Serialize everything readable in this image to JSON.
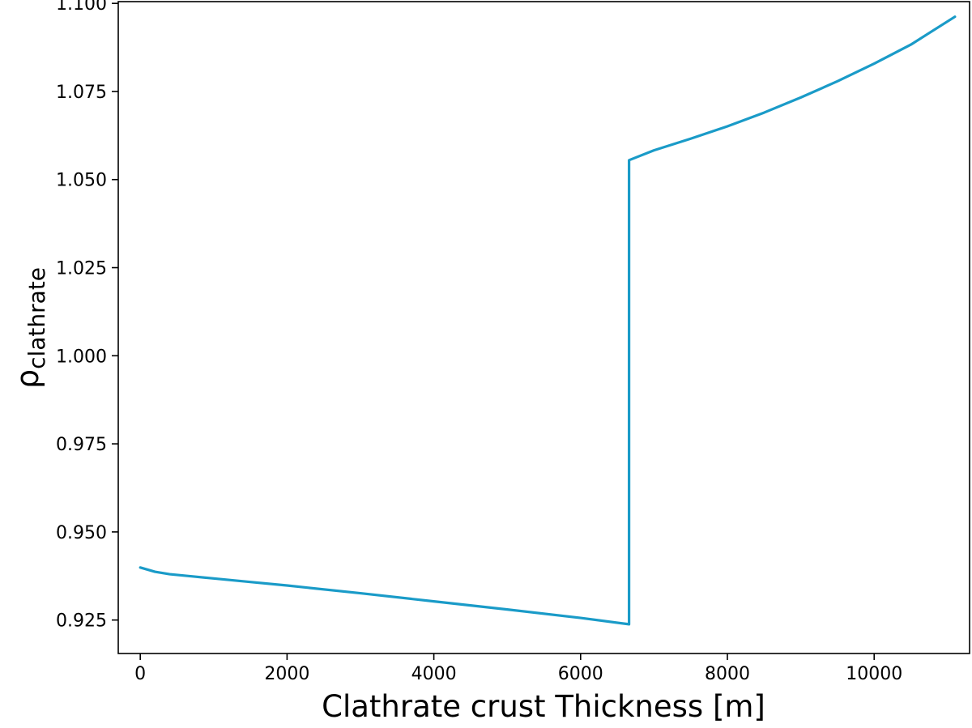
{
  "chart_data": {
    "type": "line",
    "xlabel": "Clathrate crust Thickness [m]",
    "ylabel": {
      "base": "ρ",
      "sub": "clathrate"
    },
    "xlim": [
      -300,
      11300
    ],
    "ylim": [
      0.9155,
      1.1005
    ],
    "xticks": [
      0,
      2000,
      4000,
      6000,
      8000,
      10000
    ],
    "xtick_labels": [
      "0",
      "2000",
      "4000",
      "6000",
      "8000",
      "10000"
    ],
    "yticks": [
      0.925,
      0.95,
      0.975,
      1.0,
      1.025,
      1.05,
      1.075,
      1.1
    ],
    "ytick_labels": [
      "0.925",
      "0.950",
      "0.975",
      "1.000",
      "1.025",
      "1.050",
      "1.075",
      "1.100"
    ],
    "grid": false,
    "series": [
      {
        "color": "#1a9bc8",
        "x": [
          0,
          100,
          200,
          400,
          700,
          1000,
          1500,
          2000,
          3000,
          4000,
          5000,
          6000,
          6660,
          6660,
          6660,
          6660,
          7000,
          7500,
          8000,
          8500,
          9000,
          9500,
          10000,
          10500,
          11100
        ],
        "y": [
          0.9399,
          0.9393,
          0.9387,
          0.938,
          0.9374,
          0.9368,
          0.9358,
          0.9348,
          0.9326,
          0.9303,
          0.928,
          0.9256,
          0.9238,
          1.009,
          1.008,
          1.0555,
          1.0583,
          1.0616,
          1.0651,
          1.069,
          1.0733,
          1.0779,
          1.0829,
          1.0883,
          1.0962
        ]
      }
    ]
  }
}
